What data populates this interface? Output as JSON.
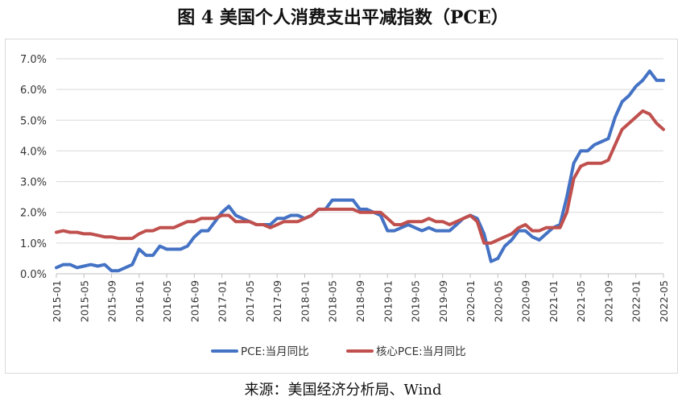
{
  "title": "图 4 美国个人消费支出平减指数（PCE）",
  "source": "来源：美国经济分析局、Wind",
  "chart_data": {
    "type": "line",
    "x_ticks": [
      "2015-01",
      "2015-05",
      "2015-09",
      "2016-01",
      "2016-05",
      "2016-09",
      "2017-01",
      "2017-05",
      "2017-09",
      "2018-01",
      "2018-05",
      "2018-09",
      "2019-01",
      "2019-05",
      "2019-09",
      "2020-01",
      "2020-05",
      "2020-09",
      "2021-01",
      "2021-05",
      "2021-09",
      "2022-01",
      "2022-05"
    ],
    "y_ticks": [
      "0.0%",
      "1.0%",
      "2.0%",
      "3.0%",
      "4.0%",
      "5.0%",
      "6.0%",
      "7.0%"
    ],
    "ylim": [
      0,
      7
    ],
    "grid": true,
    "legend_position": "bottom",
    "series": [
      {
        "name": "PCE:当月同比",
        "color": "#4472C4",
        "values": [
          0.2,
          0.3,
          0.3,
          0.2,
          0.25,
          0.3,
          0.25,
          0.3,
          0.1,
          0.1,
          0.2,
          0.3,
          0.8,
          0.6,
          0.6,
          0.9,
          0.8,
          0.8,
          0.8,
          0.9,
          1.2,
          1.4,
          1.4,
          1.7,
          2.0,
          2.2,
          1.9,
          1.8,
          1.7,
          1.6,
          1.6,
          1.6,
          1.8,
          1.8,
          1.9,
          1.9,
          1.8,
          1.9,
          2.1,
          2.1,
          2.4,
          2.4,
          2.4,
          2.4,
          2.1,
          2.1,
          2.0,
          1.9,
          1.4,
          1.4,
          1.5,
          1.6,
          1.5,
          1.4,
          1.5,
          1.4,
          1.4,
          1.4,
          1.6,
          1.8,
          1.9,
          1.8,
          1.3,
          0.4,
          0.5,
          0.9,
          1.1,
          1.4,
          1.4,
          1.2,
          1.1,
          1.3,
          1.5,
          1.6,
          2.5,
          3.6,
          4.0,
          4.0,
          4.2,
          4.3,
          4.4,
          5.1,
          5.6,
          5.8,
          6.1,
          6.3,
          6.6,
          6.3,
          6.3
        ]
      },
      {
        "name": "核心PCE:当月同比",
        "color": "#C0504D",
        "values": [
          1.35,
          1.4,
          1.35,
          1.35,
          1.3,
          1.3,
          1.25,
          1.2,
          1.2,
          1.15,
          1.15,
          1.15,
          1.3,
          1.4,
          1.4,
          1.5,
          1.5,
          1.5,
          1.6,
          1.7,
          1.7,
          1.8,
          1.8,
          1.8,
          1.9,
          1.9,
          1.7,
          1.7,
          1.7,
          1.6,
          1.6,
          1.5,
          1.6,
          1.7,
          1.7,
          1.7,
          1.8,
          1.9,
          2.1,
          2.1,
          2.1,
          2.1,
          2.1,
          2.1,
          2.0,
          2.0,
          2.0,
          2.0,
          1.8,
          1.6,
          1.6,
          1.7,
          1.7,
          1.7,
          1.8,
          1.7,
          1.7,
          1.6,
          1.7,
          1.8,
          1.9,
          1.7,
          1.0,
          1.0,
          1.1,
          1.2,
          1.3,
          1.5,
          1.6,
          1.4,
          1.4,
          1.5,
          1.5,
          1.5,
          2.0,
          3.1,
          3.5,
          3.6,
          3.6,
          3.6,
          3.7,
          4.2,
          4.7,
          4.9,
          5.1,
          5.3,
          5.2,
          4.9,
          4.7
        ]
      }
    ]
  }
}
